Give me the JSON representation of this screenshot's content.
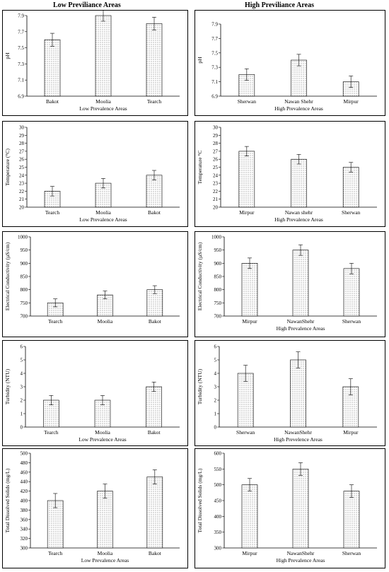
{
  "headers": {
    "left": "Low Previliance Areas",
    "right": "High Previliance Areas"
  },
  "chart_data": [
    {
      "type": "bar",
      "xlabel": "Low Prevalence Areas",
      "ylabel": "pH",
      "categories": [
        "Bakot",
        "Moolia",
        "Tearch"
      ],
      "values": [
        7.6,
        7.9,
        7.8
      ],
      "errors": [
        0.08,
        0.07,
        0.08
      ],
      "ylim": [
        6.9,
        7.9
      ],
      "ticks": [
        6.9,
        7.1,
        7.3,
        7.5,
        7.7,
        7.9
      ],
      "tick_labels": [
        "6.9",
        "7.1",
        "7.3",
        "7.5",
        "7.7",
        "7.9"
      ],
      "grid": false,
      "legend": "none"
    },
    {
      "type": "bar",
      "xlabel": "High Prevalence Areas",
      "ylabel": "pH",
      "categories": [
        "Sherwan",
        "Nawan Shehr",
        "Mirpur"
      ],
      "values": [
        7.2,
        7.4,
        7.1
      ],
      "errors": [
        0.08,
        0.08,
        0.08
      ],
      "ylim": [
        6.9,
        7.9
      ],
      "ticks": [
        6.9,
        7.1,
        7.3,
        7.5,
        7.7,
        7.9
      ],
      "tick_labels": [
        "6.9",
        "7.1",
        "7.3",
        "7.5",
        "7.7",
        "7.9"
      ],
      "grid": false,
      "legend": "none"
    },
    {
      "type": "bar",
      "xlabel": "Low Prevalence Areas",
      "ylabel": "Temperature (°C)",
      "categories": [
        "Tearch",
        "Moolia",
        "Bakot"
      ],
      "values": [
        22,
        23,
        24
      ],
      "errors": [
        0.6,
        0.6,
        0.6
      ],
      "ylim": [
        20,
        30
      ],
      "ticks": [
        20,
        21,
        22,
        23,
        24,
        25,
        26,
        27,
        28,
        29,
        30
      ],
      "tick_labels": [
        "20",
        "21",
        "22",
        "23",
        "24",
        "25",
        "26",
        "27",
        "28",
        "29",
        "30"
      ],
      "grid": false,
      "legend": "none"
    },
    {
      "type": "bar",
      "xlabel": "High Prevalence Areas",
      "ylabel": "Temperature °C",
      "categories": [
        "Mirpur",
        "Nawan shehr",
        "Sherwan"
      ],
      "values": [
        27,
        26,
        25
      ],
      "errors": [
        0.6,
        0.6,
        0.6
      ],
      "ylim": [
        20,
        30
      ],
      "ticks": [
        20,
        21,
        22,
        23,
        24,
        25,
        26,
        27,
        28,
        29,
        30
      ],
      "tick_labels": [
        "20",
        "21",
        "22",
        "23",
        "24",
        "25",
        "26",
        "27",
        "28",
        "29",
        "30"
      ],
      "grid": false,
      "legend": "none"
    },
    {
      "type": "bar",
      "xlabel": "",
      "ylabel": "Electrical Conductivity (µS/cm)",
      "categories": [
        "Tearch",
        "Moolia",
        "Bakot"
      ],
      "values": [
        750,
        780,
        800
      ],
      "errors": [
        15,
        15,
        15
      ],
      "ylim": [
        700,
        1000
      ],
      "ticks": [
        700,
        750,
        800,
        850,
        900,
        950,
        1000
      ],
      "tick_labels": [
        "700",
        "750",
        "800",
        "850",
        "900",
        "950",
        "1000"
      ],
      "grid": false,
      "legend": "none"
    },
    {
      "type": "bar",
      "xlabel": "High Prevalence Areas",
      "ylabel": "Electrical Conductivity (µS/cm)",
      "categories": [
        "Mirpur",
        "NawanShehr",
        "Sherwan"
      ],
      "values": [
        900,
        950,
        880
      ],
      "errors": [
        20,
        20,
        20
      ],
      "ylim": [
        700,
        1000
      ],
      "ticks": [
        700,
        750,
        800,
        850,
        900,
        950,
        1000
      ],
      "tick_labels": [
        "700",
        "750",
        "800",
        "850",
        "900",
        "950",
        "1000"
      ],
      "grid": false,
      "legend": "none"
    },
    {
      "type": "bar",
      "xlabel": "Low Prevalence Areas",
      "ylabel": "Turbidity (NTU)",
      "categories": [
        "Tearch",
        "Moolia",
        "Bakot"
      ],
      "values": [
        2,
        2,
        3
      ],
      "errors": [
        0.35,
        0.35,
        0.35
      ],
      "ylim": [
        0,
        6
      ],
      "ticks": [
        0,
        1,
        2,
        3,
        4,
        5,
        6
      ],
      "tick_labels": [
        "0",
        "1",
        "2",
        "3",
        "4",
        "5",
        "6"
      ],
      "grid": false,
      "legend": "none"
    },
    {
      "type": "bar",
      "xlabel": "High Prevelence Areas",
      "ylabel": "Turbidity (NTU)",
      "categories": [
        "Sherwan",
        "NawanShehr",
        "Mirpur"
      ],
      "values": [
        4,
        5,
        3
      ],
      "errors": [
        0.6,
        0.6,
        0.6
      ],
      "ylim": [
        0,
        6
      ],
      "ticks": [
        0,
        1,
        2,
        3,
        4,
        5,
        6
      ],
      "tick_labels": [
        "0",
        "1",
        "2",
        "3",
        "4",
        "5",
        "6"
      ],
      "grid": false,
      "legend": "none"
    },
    {
      "type": "bar",
      "xlabel": "Low Prevalence Areas",
      "ylabel": "Total Dissolved Solids (mg/L)",
      "categories": [
        "Tearch",
        "Moolia",
        "Bakot"
      ],
      "values": [
        400,
        420,
        450
      ],
      "errors": [
        15,
        15,
        15
      ],
      "ylim": [
        300,
        500
      ],
      "ticks": [
        300,
        320,
        340,
        360,
        380,
        400,
        420,
        440,
        460,
        480,
        500
      ],
      "tick_labels": [
        "300",
        "320",
        "340",
        "360",
        "380",
        "400",
        "420",
        "440",
        "460",
        "480",
        "500"
      ],
      "grid": false,
      "legend": "none"
    },
    {
      "type": "bar",
      "xlabel": "High Prevalence Areas",
      "ylabel": "Total Dissolved Solids (mg/L)",
      "categories": [
        "Mirpur",
        "NawanShehr",
        "Sherwan"
      ],
      "values": [
        500,
        550,
        480
      ],
      "errors": [
        20,
        20,
        20
      ],
      "ylim": [
        300,
        600
      ],
      "ticks": [
        300,
        350,
        400,
        450,
        500,
        550,
        600
      ],
      "tick_labels": [
        "300",
        "350",
        "400",
        "450",
        "500",
        "550",
        "600"
      ],
      "grid": false,
      "legend": "none"
    }
  ]
}
